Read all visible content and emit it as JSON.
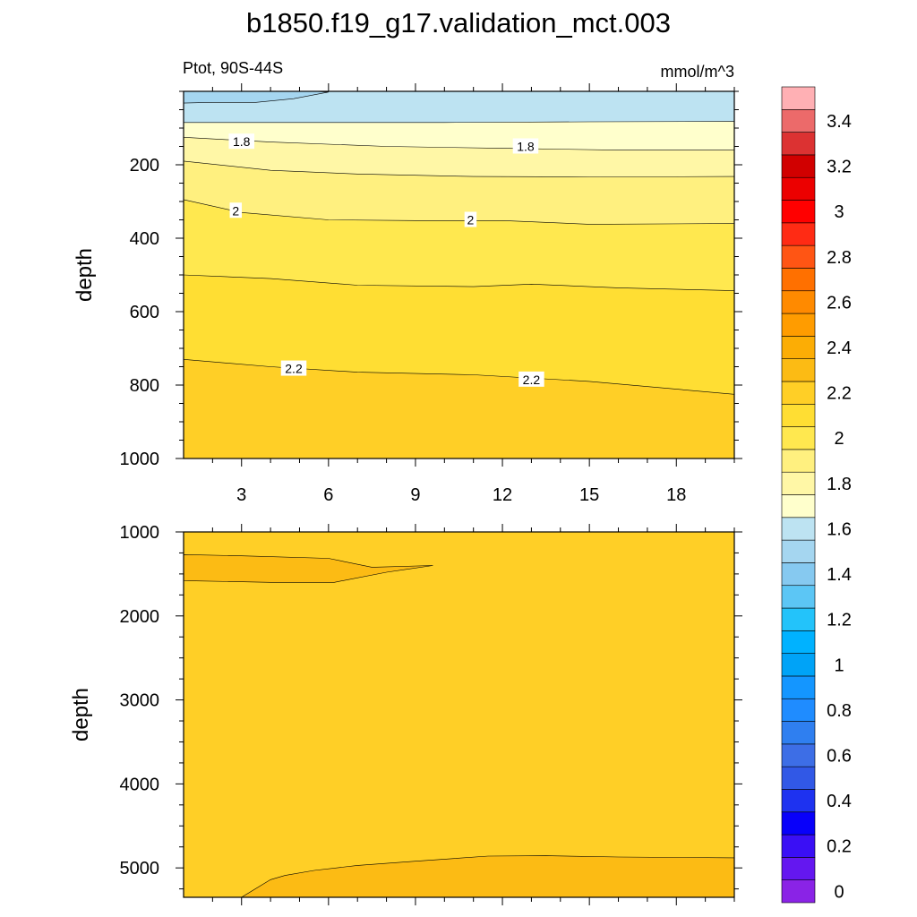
{
  "title": "b1850.f19_g17.validation_mct.003",
  "chart_data": {
    "type": "contour",
    "variable": "Ptot",
    "region": "90S-44S",
    "left_subtitle": "Ptot, 90S-44S",
    "units": "mmol/m^3",
    "xlabel": "",
    "x_range": [
      1,
      20
    ],
    "x_ticks": [
      3,
      6,
      9,
      12,
      15,
      18
    ],
    "colorbar": {
      "levels": [
        0,
        0.1,
        0.2,
        0.3,
        0.4,
        0.5,
        0.6,
        0.7,
        0.8,
        0.9,
        1.0,
        1.1,
        1.2,
        1.3,
        1.4,
        1.5,
        1.6,
        1.7,
        1.8,
        1.9,
        2.0,
        2.1,
        2.2,
        2.3,
        2.4,
        2.5,
        2.6,
        2.7,
        2.8,
        2.9,
        3.0,
        3.1,
        3.2,
        3.3,
        3.4,
        3.5
      ],
      "label_values": [
        "0",
        "0.2",
        "0.4",
        "0.6",
        "0.8",
        "1",
        "1.2",
        "1.4",
        "1.6",
        "1.8",
        "2",
        "2.2",
        "2.4",
        "2.6",
        "2.8",
        "3",
        "3.2",
        "3.4"
      ],
      "colors": [
        "#8a23e6",
        "#6417f0",
        "#3a0ff5",
        "#0800fa",
        "#1e32f0",
        "#3158e6",
        "#3d6ee6",
        "#2f7ff0",
        "#1f8cff",
        "#1496ff",
        "#00a3f7",
        "#00b2ff",
        "#23c3fa",
        "#5cc6f5",
        "#86c9f0",
        "#a5d6f0",
        "#bde3f2",
        "#ffffcc",
        "#fff7a6",
        "#fff07f",
        "#ffe84f",
        "#ffde33",
        "#ffcf26",
        "#fcbb14",
        "#fcad05",
        "#ff9c00",
        "#ff8a00",
        "#ff7000",
        "#ff5514",
        "#ff2b14",
        "#ff0000",
        "#ec0000",
        "#d10000",
        "#dc3232",
        "#ec6a6a",
        "#ffb0b4"
      ]
    },
    "panels": [
      {
        "name": "upper",
        "ylabel": "depth",
        "y_range": [
          0,
          1000
        ],
        "y_ticks": [
          200,
          400,
          600,
          800,
          1000
        ],
        "contour_labels": [
          {
            "text": "1.8",
            "x": 3.0,
            "y": 137
          },
          {
            "text": "1.8",
            "x": 12.8,
            "y": 150
          },
          {
            "text": "2",
            "x": 2.8,
            "y": 325
          },
          {
            "text": "2",
            "x": 10.9,
            "y": 350
          },
          {
            "text": "2.2",
            "x": 4.8,
            "y": 755
          },
          {
            "text": "2.2",
            "x": 13.0,
            "y": 785
          }
        ]
      },
      {
        "name": "lower",
        "ylabel": "depth",
        "y_range": [
          1000,
          5350
        ],
        "y_ticks": [
          1000,
          2000,
          3000,
          4000,
          5000
        ]
      }
    ]
  }
}
